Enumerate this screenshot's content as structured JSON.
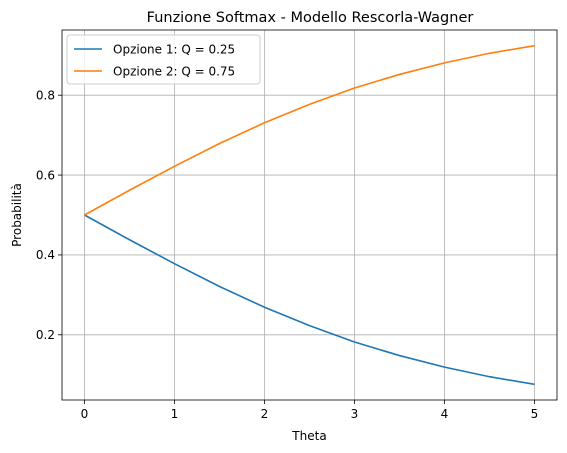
{
  "chart_data": {
    "type": "line",
    "title": "Funzione Softmax - Modello Rescorla-Wagner",
    "xlabel": "Theta",
    "ylabel": "Probabilità",
    "xlim": [
      -0.25,
      5.25
    ],
    "ylim": [
      0.0367,
      0.9633
    ],
    "xticks": [
      0,
      1,
      2,
      3,
      4,
      5
    ],
    "xtick_labels": [
      "0",
      "1",
      "2",
      "3",
      "4",
      "5"
    ],
    "yticks": [
      0.2,
      0.4,
      0.6,
      0.8
    ],
    "ytick_labels": [
      "0.2",
      "0.4",
      "0.6",
      "0.8"
    ],
    "grid": true,
    "legend_position": "upper-left",
    "series": [
      {
        "name": "Opzione 1: Q = 0.25",
        "color": "#1f77b4",
        "x": [
          0,
          0.5,
          1,
          1.5,
          2,
          2.5,
          3,
          3.5,
          4,
          4.5,
          5
        ],
        "y": [
          0.5,
          0.438,
          0.378,
          0.321,
          0.269,
          0.223,
          0.182,
          0.148,
          0.119,
          0.095,
          0.076
        ]
      },
      {
        "name": "Opzione 2: Q = 0.75",
        "color": "#ff7f0e",
        "x": [
          0,
          0.5,
          1,
          1.5,
          2,
          2.5,
          3,
          3.5,
          4,
          4.5,
          5
        ],
        "y": [
          0.5,
          0.562,
          0.622,
          0.679,
          0.731,
          0.777,
          0.818,
          0.852,
          0.881,
          0.905,
          0.924
        ]
      }
    ]
  }
}
